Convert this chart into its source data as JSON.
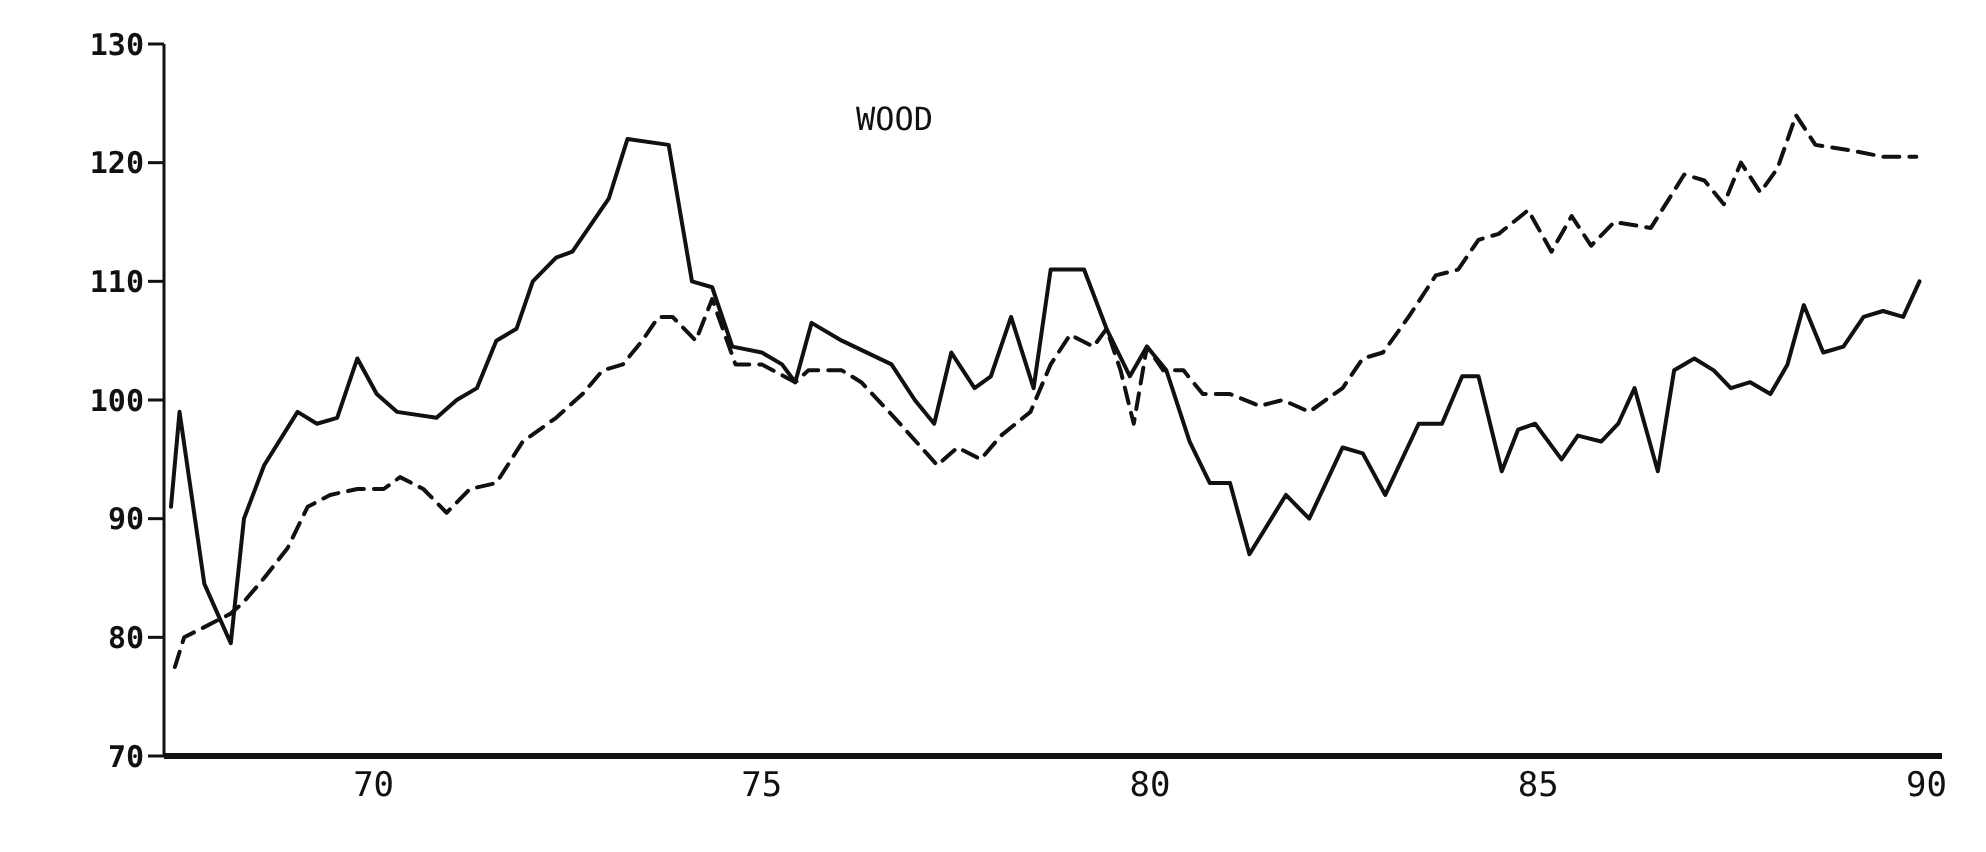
{
  "chart_data": {
    "type": "line",
    "title": "WOOD",
    "xlim": [
      67.3,
      90.2
    ],
    "xticks": [
      70,
      75,
      80,
      85,
      90
    ],
    "ylim": [
      70,
      130
    ],
    "yticks": [
      70,
      80,
      90,
      100,
      110,
      120,
      130
    ],
    "marker": "none",
    "series": [
      {
        "color": "#111111",
        "line_style": "solid",
        "x": [
          67.39,
          67.5,
          67.82,
          67.99,
          68.16,
          68.33,
          68.59,
          69.02,
          69.27,
          69.53,
          69.79,
          70.04,
          70.3,
          70.81,
          71.07,
          71.33,
          71.58,
          71.84,
          72.05,
          72.35,
          72.56,
          73.03,
          73.27,
          73.8,
          74.1,
          74.36,
          74.62,
          75.0,
          75.26,
          75.43,
          75.64,
          76.03,
          76.67,
          76.97,
          77.22,
          77.44,
          77.74,
          77.95,
          78.21,
          78.5,
          78.72,
          79.15,
          79.44,
          79.74,
          79.96,
          80.21,
          80.51,
          80.77,
          81.03,
          81.28,
          81.75,
          82.05,
          82.48,
          82.74,
          83.03,
          83.46,
          83.76,
          84.02,
          84.23,
          84.53,
          84.74,
          84.96,
          85.3,
          85.51,
          85.81,
          86.03,
          86.24,
          86.54,
          86.75,
          87.01,
          87.26,
          87.48,
          87.73,
          87.99,
          88.21,
          88.42,
          88.67,
          88.93,
          89.19,
          89.44,
          89.7,
          89.91
        ],
        "values": [
          91,
          99,
          84.5,
          82,
          79.5,
          90,
          94.5,
          99,
          98,
          98.5,
          103.5,
          100.5,
          99,
          98.5,
          100,
          101,
          105,
          106,
          110,
          112,
          112.5,
          117,
          122,
          121.5,
          110,
          109.5,
          104.5,
          104,
          103,
          101.5,
          106.5,
          105,
          103,
          100,
          98,
          104,
          101,
          102,
          107,
          101,
          111,
          111,
          106,
          102,
          104.5,
          102.5,
          96.5,
          93,
          93,
          87,
          92,
          90,
          96,
          95.5,
          92,
          98,
          98,
          102,
          102,
          94,
          97.5,
          98,
          95,
          97,
          96.5,
          98,
          101,
          94,
          102.5,
          103.5,
          102.5,
          101,
          101.5,
          100.5,
          103,
          108,
          104,
          104.5,
          107,
          107.5,
          107,
          110
        ]
      },
      {
        "color": "#111111",
        "line_style": "dashed",
        "x": [
          67.44,
          67.56,
          68.16,
          68.33,
          68.59,
          68.89,
          69.15,
          69.44,
          69.79,
          70.13,
          70.34,
          70.64,
          70.94,
          71.24,
          71.58,
          71.92,
          72.35,
          72.69,
          72.95,
          73.21,
          73.46,
          73.67,
          73.85,
          74.15,
          74.36,
          74.66,
          75.0,
          75.43,
          75.6,
          76.03,
          76.28,
          76.71,
          77.26,
          77.52,
          77.82,
          78.08,
          78.46,
          78.72,
          78.97,
          79.27,
          79.44,
          79.62,
          79.79,
          79.96,
          80.17,
          80.43,
          80.68,
          81.03,
          81.41,
          81.71,
          82.05,
          82.48,
          82.74,
          83.0,
          83.33,
          83.68,
          83.97,
          84.23,
          84.49,
          84.87,
          85.17,
          85.43,
          85.68,
          85.98,
          86.45,
          86.88,
          87.14,
          87.39,
          87.61,
          87.86,
          88.08,
          88.32,
          88.57,
          89.06,
          89.44,
          89.87
        ],
        "values": [
          77.5,
          80,
          82,
          83,
          85,
          87.5,
          91,
          92,
          92.5,
          92.5,
          93.5,
          92.5,
          90.5,
          92.5,
          93,
          96.5,
          98.5,
          100.5,
          102.5,
          103,
          105,
          107,
          107,
          105,
          108.5,
          103,
          103,
          101.5,
          102.5,
          102.5,
          101.5,
          98.5,
          94.5,
          96,
          95,
          97,
          99,
          103,
          105.5,
          104.5,
          106,
          102.5,
          98,
          104.5,
          102.5,
          102.5,
          100.5,
          100.5,
          99.5,
          100,
          99,
          101,
          103.5,
          104,
          107,
          110.5,
          111,
          113.5,
          114,
          116,
          112.5,
          115.5,
          113,
          115,
          114.5,
          119,
          118.5,
          116.5,
          120,
          117.5,
          119.5,
          124,
          121.5,
          121,
          120.5,
          120.5
        ]
      }
    ]
  }
}
